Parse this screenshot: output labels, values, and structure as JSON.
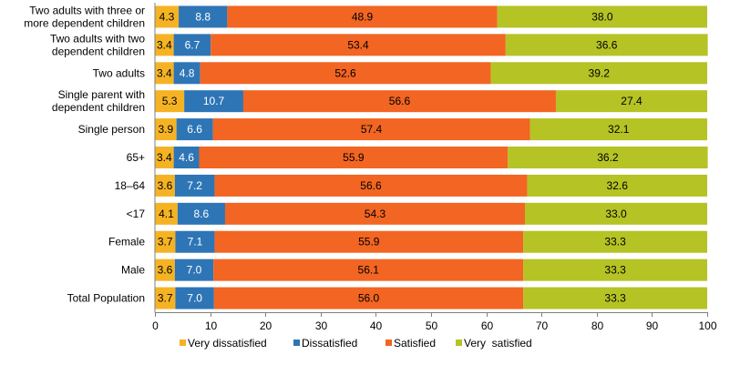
{
  "chart_data": {
    "type": "bar",
    "orientation": "horizontal",
    "stacked": true,
    "categories": [
      "Two adults with three or more dependent children",
      "Two adults with two dependent children",
      "Two adults",
      "Single parent with dependent children",
      "Single person",
      "65+",
      "18–64",
      "<17",
      "Female",
      "Male",
      "Total Population"
    ],
    "category_lines": [
      [
        "Two adults with three or",
        "more dependent children"
      ],
      [
        "Two adults with two",
        "dependent children"
      ],
      [
        "Two adults"
      ],
      [
        "Single parent with",
        "dependent children"
      ],
      [
        "Single person"
      ],
      [
        "65+"
      ],
      [
        "18–64"
      ],
      [
        "<17"
      ],
      [
        "Female"
      ],
      [
        "Male"
      ],
      [
        "Total Population"
      ]
    ],
    "series": [
      {
        "name": "Very dissatisfied",
        "color": "#F5B324",
        "values": [
          4.3,
          3.4,
          3.4,
          5.3,
          3.9,
          3.4,
          3.6,
          4.1,
          3.7,
          3.6,
          3.7
        ],
        "labels": [
          "4.3",
          "3.4",
          "3.4",
          "5.3",
          "3.9",
          "3.4",
          "3.6",
          "4.1",
          "3.7",
          "3.6",
          "3.7"
        ]
      },
      {
        "name": "Dissatisfied",
        "color": "#2E75B6",
        "values": [
          8.8,
          6.7,
          4.8,
          10.7,
          6.6,
          4.6,
          7.2,
          8.6,
          7.1,
          7.0,
          7.0
        ],
        "labels": [
          "8.8",
          "6.7",
          "4.8",
          "10.7",
          "6.6",
          "4.6",
          "7.2",
          "8.6",
          "7.1",
          "7.0",
          "7.0"
        ]
      },
      {
        "name": "Satisfied",
        "color": "#F26522",
        "values": [
          48.9,
          53.4,
          52.6,
          56.6,
          57.4,
          55.9,
          56.6,
          54.3,
          55.9,
          56.1,
          56.0
        ],
        "labels": [
          "48.9",
          "53.4",
          "52.6",
          "56.6",
          "57.4",
          "55.9",
          "56.6",
          "54.3",
          "55.9",
          "56.1",
          "56.0"
        ]
      },
      {
        "name": "Very  satisfied",
        "color": "#B5C324",
        "values": [
          38.0,
          36.6,
          39.2,
          27.4,
          32.1,
          36.2,
          32.6,
          33.0,
          33.3,
          33.3,
          33.3
        ],
        "labels": [
          "38.0",
          "36.6",
          "39.2",
          "27.4",
          "32.1",
          "36.2",
          "32.6",
          "33.0",
          "33.3",
          "33.3",
          "33.3"
        ]
      }
    ],
    "xlim": [
      0,
      100
    ],
    "xticks": [
      0,
      10,
      20,
      30,
      40,
      50,
      60,
      70,
      80,
      90,
      100
    ],
    "xlabel": "",
    "ylabel": "",
    "title": "",
    "grid": false,
    "legend": "bottom"
  }
}
